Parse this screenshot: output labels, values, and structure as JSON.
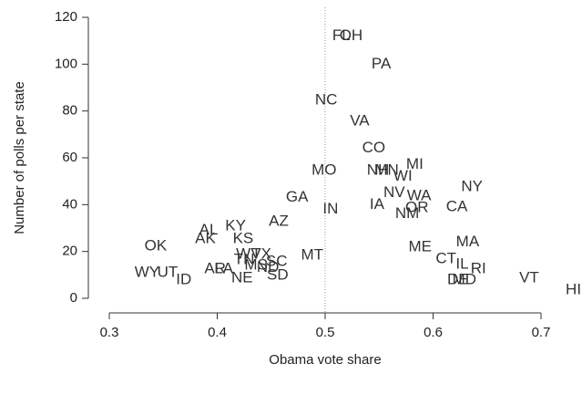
{
  "chart_data": {
    "type": "scatter",
    "x_label": "Obama vote share",
    "y_label": "Number of polls per state",
    "xlim": [
      0.3,
      0.7
    ],
    "xticks": [
      0.3,
      0.4,
      0.5,
      0.6,
      0.7
    ],
    "ylim": [
      0,
      120
    ],
    "yticks": [
      0,
      20,
      40,
      60,
      80,
      100,
      120
    ],
    "vline": 0.5,
    "labels": [
      "FL",
      "OH",
      "PA",
      "NC",
      "VA",
      "CO",
      "MO",
      "NH",
      "MN",
      "MI",
      "WI",
      "NV",
      "WA",
      "NY",
      "IA",
      "OR",
      "NM",
      "CA",
      "GA",
      "IN",
      "AZ",
      "KY",
      "AL",
      "AK",
      "KS",
      "OK",
      "ME",
      "MA",
      "MT",
      "WV",
      "TX",
      "TN",
      "SC",
      "CT",
      "IL",
      "RI",
      "AR",
      "LA",
      "MS",
      "ND",
      "NE",
      "SD",
      "WY",
      "UT",
      "ID",
      "DE",
      "MD",
      "VT",
      "HI"
    ],
    "x": [
      0.515,
      0.524,
      0.552,
      0.501,
      0.532,
      0.545,
      0.499,
      0.549,
      0.557,
      0.583,
      0.572,
      0.564,
      0.587,
      0.636,
      0.548,
      0.585,
      0.576,
      0.622,
      0.474,
      0.505,
      0.457,
      0.417,
      0.392,
      0.389,
      0.424,
      0.343,
      0.588,
      0.632,
      0.488,
      0.429,
      0.441,
      0.425,
      0.455,
      0.612,
      0.627,
      0.642,
      0.398,
      0.406,
      0.436,
      0.447,
      0.423,
      0.456,
      0.335,
      0.354,
      0.369,
      0.623,
      0.629,
      0.689,
      0.73
    ],
    "y": [
      112,
      112,
      100,
      84.5,
      75.5,
      64,
      54.5,
      54.5,
      54.5,
      57,
      52,
      45,
      43.6,
      47.5,
      40,
      38.5,
      36,
      39,
      43,
      38,
      32.7,
      30.8,
      29,
      25.3,
      25.3,
      22.2,
      21.8,
      24,
      18.3,
      18.7,
      18.7,
      16.4,
      15.6,
      16.7,
      14.4,
      12.5,
      12.5,
      12.5,
      14,
      13,
      8.6,
      9.7,
      10.9,
      10.9,
      7.8,
      7.8,
      7.8,
      8.6,
      3.5
    ]
  }
}
